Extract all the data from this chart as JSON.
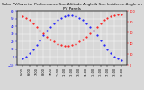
{
  "title": "Solar PV/Inverter Performance Sun Altitude Angle & Sun Incidence Angle on PV Panels",
  "background_color": "#d8d8d8",
  "grid_color": "#ffffff",
  "blue_color": "#0000ff",
  "red_color": "#ff0000",
  "time_hours": [
    5.0,
    5.5,
    6.0,
    6.5,
    7.0,
    7.5,
    8.0,
    8.5,
    9.0,
    9.5,
    10.0,
    10.5,
    11.0,
    11.5,
    12.0,
    12.5,
    13.0,
    13.5,
    14.0,
    14.5,
    15.0,
    15.5,
    16.0,
    16.5,
    17.0,
    17.5,
    18.0,
    18.5,
    19.0
  ],
  "sun_altitude": [
    -2,
    1,
    5,
    10,
    16,
    22,
    28,
    34,
    39,
    44,
    48,
    51,
    53,
    54,
    54,
    53,
    51,
    48,
    44,
    39,
    34,
    28,
    22,
    16,
    10,
    5,
    1,
    -2,
    -4
  ],
  "sun_incidence": [
    90,
    87,
    83,
    77,
    70,
    64,
    58,
    52,
    47,
    43,
    39,
    36,
    35,
    35,
    36,
    39,
    43,
    47,
    52,
    58,
    64,
    70,
    77,
    83,
    87,
    90,
    92,
    93,
    94
  ],
  "ylim_left": [
    -10,
    60
  ],
  "ylim_right": [
    0,
    100
  ],
  "yticks_left": [
    -10,
    0,
    10,
    20,
    30,
    40,
    50,
    60
  ],
  "yticks_right": [
    0,
    20,
    40,
    60,
    80,
    100
  ],
  "xtick_step": 2,
  "marker_size": 1.0,
  "title_fontsize": 3.0,
  "tick_fontsize": 2.5,
  "label_fontsize": 2.5,
  "figwidth": 1.6,
  "figheight": 1.0,
  "dpi": 100
}
